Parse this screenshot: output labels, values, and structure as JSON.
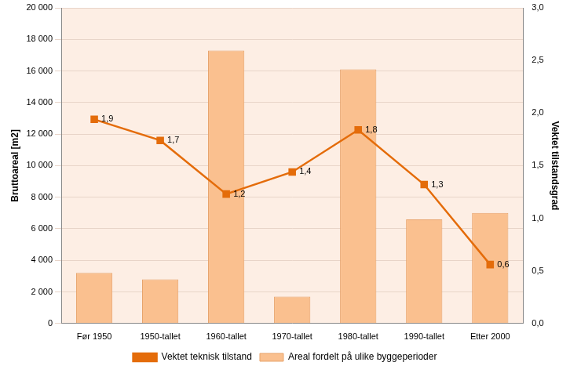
{
  "chart_data": {
    "type": "bar",
    "categories": [
      "Før 1950",
      "1950-tallet",
      "1960-tallet",
      "1970-tallet",
      "1980-tallet",
      "1990-tallet",
      "Etter 2000"
    ],
    "y_label": "Bruttoareal [m2]",
    "y2_label": "Vektet tilstandsgrad",
    "ylim": [
      0,
      20000
    ],
    "yticks": [
      0,
      {
        "value": 2000,
        "label": "2 000"
      },
      {
        "value": 4000,
        "label": "4 000"
      },
      {
        "value": 6000,
        "label": "6 000"
      },
      {
        "value": 8000,
        "label": "8 000"
      },
      {
        "value": 10000,
        "label": "10 000"
      },
      {
        "value": 12000,
        "label": "12 000"
      },
      {
        "value": 14000,
        "label": "14 000"
      },
      {
        "value": 16000,
        "label": "16 000"
      },
      {
        "value": 18000,
        "label": "18 000"
      },
      {
        "value": 20000,
        "label": "20 000"
      }
    ],
    "y2lim": [
      0,
      3
    ],
    "y2ticks": [
      {
        "value": 0,
        "label": "0,0"
      },
      {
        "value": 0.5,
        "label": "0,5"
      },
      {
        "value": 1,
        "label": "1,0"
      },
      {
        "value": 1.5,
        "label": "1,5"
      },
      {
        "value": 2,
        "label": "2,0"
      },
      {
        "value": 2.5,
        "label": "2,5"
      },
      {
        "value": 3,
        "label": "3,0"
      }
    ],
    "grid": true,
    "legend": "bottom",
    "series": [
      {
        "name": "Areal fordelt på ulike byggeperioder",
        "type": "bar",
        "color": "#fac08f",
        "values": [
          3200,
          2800,
          17300,
          1700,
          16100,
          6600,
          7000
        ]
      },
      {
        "name": "Vektet teknisk tilstand",
        "type": "line",
        "axis": "y2",
        "color": "#e46c0a",
        "marker": "square",
        "data_labels": true,
        "values": [
          1.94,
          1.74,
          1.23,
          1.44,
          1.84,
          1.32,
          0.56
        ],
        "value_labels": [
          "1,9",
          "1,7",
          "1,2",
          "1,4",
          "1,8",
          "1,3",
          "0,6"
        ]
      }
    ]
  }
}
